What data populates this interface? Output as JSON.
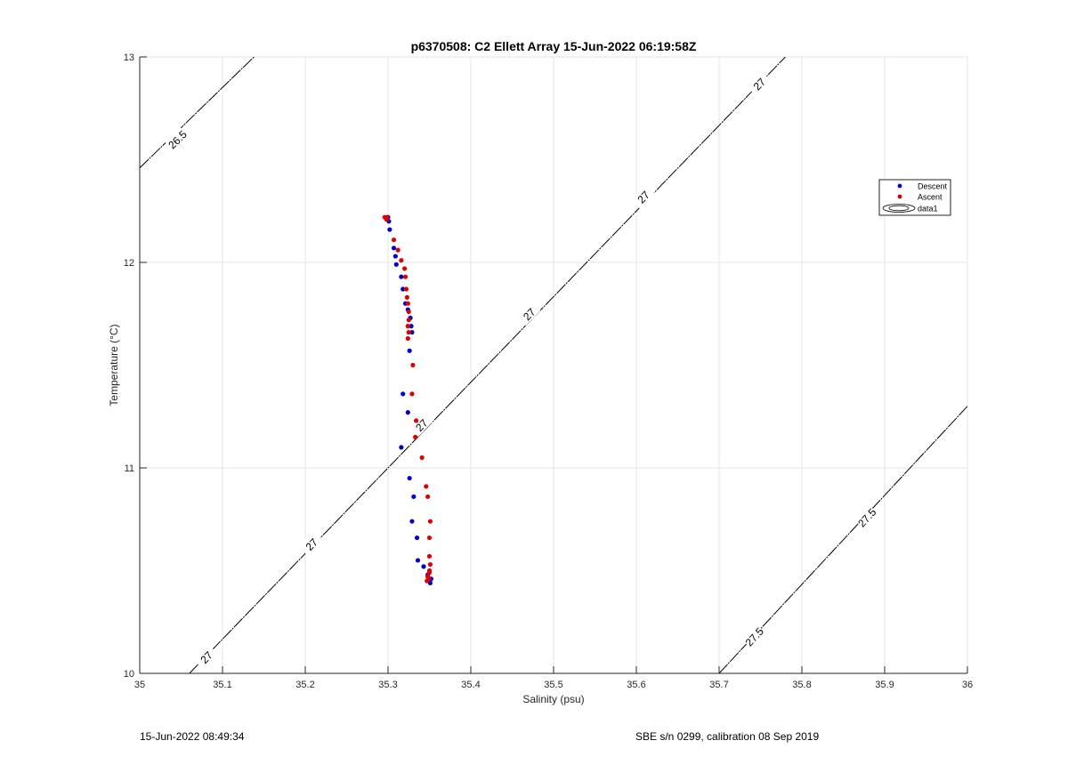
{
  "chart_data": {
    "type": "scatter",
    "title": "p6370508: C2 Ellett Array 15-Jun-2022 06:19:58Z",
    "xlabel": "Salinity (psu)",
    "ylabel": "Temperature (°C)",
    "xlim": [
      35,
      36
    ],
    "ylim": [
      10,
      13
    ],
    "grid": true,
    "x_ticks": [
      "35",
      "35.1",
      "35.2",
      "35.3",
      "35.4",
      "35.5",
      "35.6",
      "35.7",
      "35.8",
      "35.9",
      "36"
    ],
    "y_ticks": [
      "10",
      "11",
      "12",
      "13"
    ],
    "legend_position": "right",
    "legend": [
      "Descent",
      "Ascent",
      "data1"
    ],
    "series": [
      {
        "name": "Descent",
        "color": "#0000cc",
        "points": [
          [
            35.3,
            12.22
          ],
          [
            35.301,
            12.2
          ],
          [
            35.302,
            12.16
          ],
          [
            35.307,
            12.07
          ],
          [
            35.309,
            12.03
          ],
          [
            35.31,
            11.99
          ],
          [
            35.316,
            11.93
          ],
          [
            35.318,
            11.87
          ],
          [
            35.321,
            11.8
          ],
          [
            35.324,
            11.77
          ],
          [
            35.327,
            11.73
          ],
          [
            35.328,
            11.69
          ],
          [
            35.329,
            11.66
          ],
          [
            35.326,
            11.57
          ],
          [
            35.318,
            11.36
          ],
          [
            35.324,
            11.27
          ],
          [
            35.316,
            11.1
          ],
          [
            35.326,
            10.95
          ],
          [
            35.331,
            10.86
          ],
          [
            35.329,
            10.74
          ],
          [
            35.335,
            10.66
          ],
          [
            35.336,
            10.55
          ],
          [
            35.343,
            10.52
          ],
          [
            35.348,
            10.48
          ],
          [
            35.349,
            10.45
          ],
          [
            35.351,
            10.44
          ],
          [
            35.352,
            10.46
          ]
        ]
      },
      {
        "name": "Ascent",
        "color": "#dd0000",
        "points": [
          [
            35.296,
            12.22
          ],
          [
            35.298,
            12.21
          ],
          [
            35.299,
            12.22
          ],
          [
            35.307,
            12.11
          ],
          [
            35.312,
            12.06
          ],
          [
            35.316,
            12.01
          ],
          [
            35.32,
            11.97
          ],
          [
            35.321,
            11.93
          ],
          [
            35.322,
            11.87
          ],
          [
            35.323,
            11.83
          ],
          [
            35.324,
            11.8
          ],
          [
            35.325,
            11.76
          ],
          [
            35.325,
            11.72
          ],
          [
            35.324,
            11.69
          ],
          [
            35.325,
            11.66
          ],
          [
            35.324,
            11.63
          ],
          [
            35.33,
            11.5
          ],
          [
            35.329,
            11.36
          ],
          [
            35.334,
            11.23
          ],
          [
            35.333,
            11.15
          ],
          [
            35.341,
            11.05
          ],
          [
            35.346,
            10.91
          ],
          [
            35.348,
            10.86
          ],
          [
            35.351,
            10.74
          ],
          [
            35.35,
            10.66
          ],
          [
            35.35,
            10.57
          ],
          [
            35.351,
            10.53
          ],
          [
            35.35,
            10.49
          ],
          [
            35.348,
            10.47
          ],
          [
            35.349,
            10.46
          ],
          [
            35.347,
            10.45
          ],
          [
            35.35,
            10.5
          ]
        ]
      }
    ],
    "isopycnals": [
      {
        "label": "26.5",
        "line": [
          [
            35.0,
            12.46
          ],
          [
            35.138,
            13.0
          ]
        ],
        "label_pos": [
          0.045,
          12.6
        ]
      },
      {
        "label": "27",
        "line": [
          [
            35.06,
            10.0
          ],
          [
            35.78,
            13.0
          ]
        ],
        "label_pos_list": [
          [
            0.08,
            10.08
          ],
          [
            0.207,
            10.63
          ],
          [
            0.34,
            11.21
          ],
          [
            0.47,
            11.75
          ],
          [
            0.608,
            12.32
          ],
          [
            0.748,
            12.87
          ]
        ]
      },
      {
        "label": "27.5",
        "line": [
          [
            35.7,
            10.0
          ],
          [
            36.0,
            11.3
          ]
        ],
        "label_pos_list": [
          [
            0.742,
            10.18
          ],
          [
            0.878,
            10.76
          ]
        ]
      }
    ]
  },
  "footer": {
    "timestamp": "15-Jun-2022 08:49:34",
    "calibration": "SBE s/n 0299, calibration 08 Sep 2019"
  }
}
